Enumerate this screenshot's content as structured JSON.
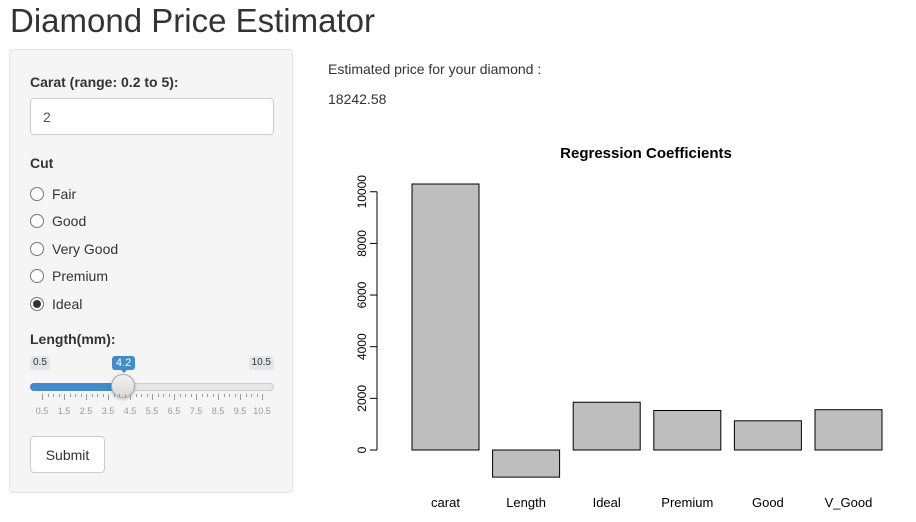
{
  "app": {
    "title": "Diamond Price Estimator"
  },
  "sidebar": {
    "carat": {
      "label": "Carat (range: 0.2 to 5):",
      "value": "2"
    },
    "cut": {
      "label": "Cut",
      "options": [
        "Fair",
        "Good",
        "Very Good",
        "Premium",
        "Ideal"
      ],
      "selected": "Ideal"
    },
    "length": {
      "label": "Length(mm):",
      "min": 0.5,
      "max": 10.5,
      "min_label": "0.5",
      "max_label": "10.5",
      "value": 4.2,
      "value_label": "4.2",
      "tick_labels": [
        "0.5",
        "1.5",
        "2.5",
        "3.5",
        "4.5",
        "5.5",
        "6.5",
        "7.5",
        "8.5",
        "9.5",
        "10.5"
      ],
      "accent_color": "#428bca"
    },
    "submit_label": "Submit"
  },
  "result": {
    "label": "Estimated price for your diamond :",
    "value": "18242.58"
  },
  "chart_data": {
    "type": "bar",
    "title": "Regression Coefficients",
    "xlabel": "",
    "ylabel": "",
    "categories": [
      "carat",
      "Length",
      "Ideal",
      "Premium",
      "Good",
      "V_Good"
    ],
    "values": [
      10300,
      -1050,
      1850,
      1530,
      1130,
      1560
    ],
    "yticks": [
      0,
      2000,
      4000,
      6000,
      8000,
      10000
    ],
    "ylim": [
      -1050,
      10300
    ],
    "bar_color": "#bebebe",
    "grid": false
  }
}
